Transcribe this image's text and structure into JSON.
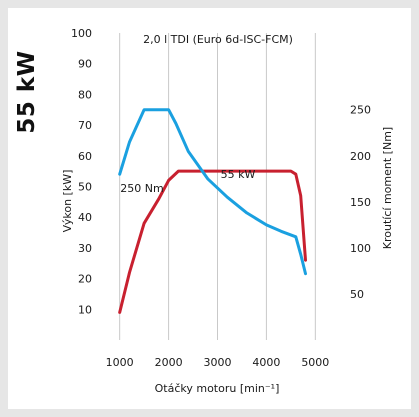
{
  "badge": {
    "power": "55 kW"
  },
  "chart_data": {
    "type": "line",
    "title": "2,0 l TDI (Euro 6d-ISC-FCM)",
    "xlabel": "Otáčky motoru [min⁻¹]",
    "ylabel_left": "Výkon [kW]",
    "ylabel_right": "Kroutící moment [Nm]",
    "x_ticks": [
      1000,
      2000,
      3000,
      4000,
      5000
    ],
    "y_left_ticks": [
      10,
      20,
      30,
      40,
      50,
      60,
      70,
      80,
      90,
      100
    ],
    "y_right_ticks": [
      50,
      100,
      150,
      200,
      250
    ],
    "xlim": [
      700,
      5300
    ],
    "ylim_left": [
      0,
      100
    ],
    "ylim_right": [
      0,
      333.3
    ],
    "annotations": {
      "torque_peak": "250 Nm",
      "power_peak": "55 kW"
    },
    "series": [
      {
        "name": "Výkon",
        "axis": "left",
        "color": "#c8202f",
        "x": [
          1000,
          1200,
          1500,
          1800,
          2000,
          2200,
          2500,
          3000,
          3500,
          4000,
          4500,
          4600,
          4700,
          4800
        ],
        "y": [
          9,
          22,
          38,
          46,
          52,
          55,
          55,
          55,
          55,
          55,
          55,
          54,
          47,
          26
        ]
      },
      {
        "name": "Kroutící moment",
        "axis": "right",
        "color": "#1aa0e0",
        "x": [
          1000,
          1200,
          1500,
          1800,
          2000,
          2150,
          2400,
          2800,
          3200,
          3600,
          4000,
          4300,
          4600,
          4700,
          4800
        ],
        "y": [
          180,
          215,
          250,
          250,
          250,
          235,
          205,
          175,
          155,
          138,
          125,
          118,
          112,
          93,
          72
        ]
      }
    ]
  }
}
